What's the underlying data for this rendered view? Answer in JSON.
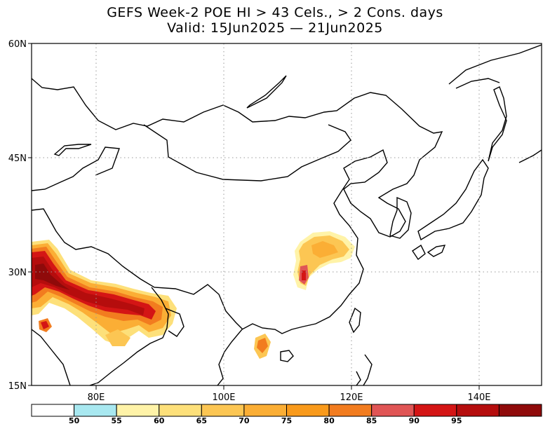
{
  "header": {
    "title_line1": "GEFS Week-2 POE HI > 43 Cels., > 2 Cons. days",
    "title_line2": "Valid: 15Jun2025 — 21Jun2025"
  },
  "map": {
    "lat_labels": [
      "60N",
      "45N",
      "30N",
      "15N"
    ],
    "lon_labels": [
      "80E",
      "100E",
      "120E",
      "140E"
    ]
  },
  "colorbar": {
    "colors": [
      "#ffffff",
      "#a8e8f0",
      "#fff3a8",
      "#fde07a",
      "#fcc653",
      "#fbae35",
      "#f99a1b",
      "#f27c1f",
      "#e05555",
      "#d41515",
      "#b50d0d",
      "#8f0a0a"
    ],
    "tick_labels": [
      "50",
      "55",
      "60",
      "65",
      "70",
      "75",
      "80",
      "85",
      "90",
      "95"
    ]
  }
}
